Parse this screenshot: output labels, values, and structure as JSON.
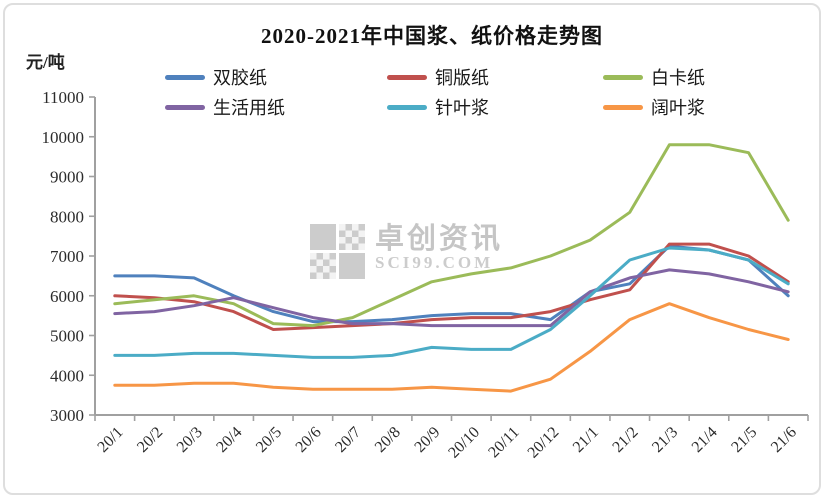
{
  "watermark": {
    "line1": "卓创资讯",
    "line2": "SCI99.COM"
  },
  "chart_data": {
    "type": "line",
    "title": "2020-2021年中国浆、纸价格走势图",
    "ylabel": "元/吨",
    "xlabel": "",
    "ylim": [
      3000,
      11000
    ],
    "ytick_step": 1000,
    "grid": false,
    "legend_position": "top",
    "categories": [
      "20/1",
      "20/2",
      "20/3",
      "20/4",
      "20/5",
      "20/6",
      "20/7",
      "20/8",
      "20/9",
      "20/10",
      "20/11",
      "20/12",
      "21/1",
      "21/2",
      "21/3",
      "21/4",
      "21/5",
      "21/6"
    ],
    "series": [
      {
        "name": "双胶纸",
        "color": "#4F81BD",
        "values": [
          6500,
          6500,
          6450,
          6000,
          5600,
          5350,
          5350,
          5400,
          5500,
          5550,
          5550,
          5400,
          6100,
          6300,
          7250,
          7150,
          6900,
          6000
        ]
      },
      {
        "name": "铜版纸",
        "color": "#C0504D",
        "values": [
          6000,
          5950,
          5850,
          5600,
          5150,
          5200,
          5250,
          5300,
          5400,
          5450,
          5450,
          5600,
          5900,
          6150,
          7300,
          7300,
          7000,
          6350
        ]
      },
      {
        "name": "白卡纸",
        "color": "#9BBB59",
        "values": [
          5800,
          5900,
          6000,
          5800,
          5300,
          5250,
          5450,
          5900,
          6350,
          6550,
          6700,
          7000,
          7400,
          8100,
          9800,
          9800,
          9600,
          7900
        ]
      },
      {
        "name": "生活用纸",
        "color": "#8064A2",
        "values": [
          5550,
          5600,
          5750,
          5950,
          5700,
          5450,
          5300,
          5300,
          5250,
          5250,
          5250,
          5250,
          6100,
          6450,
          6650,
          6550,
          6350,
          6100
        ]
      },
      {
        "name": "针叶浆",
        "color": "#4BACC6",
        "values": [
          4500,
          4500,
          4550,
          4550,
          4500,
          4450,
          4450,
          4500,
          4700,
          4650,
          4650,
          5150,
          6000,
          6900,
          7200,
          7150,
          6900,
          6300
        ]
      },
      {
        "name": "阔叶浆",
        "color": "#F79646",
        "values": [
          3750,
          3750,
          3800,
          3800,
          3700,
          3650,
          3650,
          3650,
          3700,
          3650,
          3600,
          3900,
          4600,
          5400,
          5800,
          5450,
          5150,
          4900
        ]
      }
    ]
  }
}
